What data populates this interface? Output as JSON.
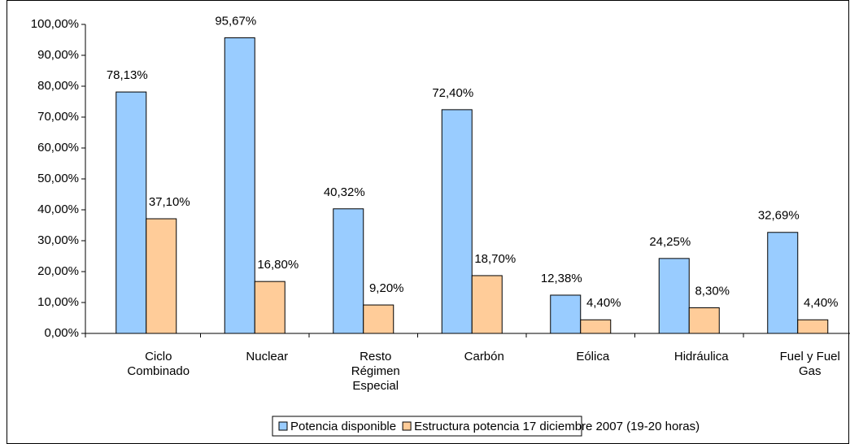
{
  "chart_data": {
    "type": "bar",
    "categories": [
      "Ciclo Combinado",
      "Nuclear",
      "Resto Régimen Especial",
      "Carbón",
      "Eólica",
      "Hidráulica",
      "Fuel y Fuel Gas"
    ],
    "series": [
      {
        "name": "Potencia disponible",
        "color": "#99ccff",
        "values": [
          78.13,
          95.67,
          40.32,
          72.4,
          12.38,
          24.25,
          32.69
        ],
        "value_labels": [
          "78,13%",
          "95,67%",
          "40,32%",
          "72,40%",
          "12,38%",
          "24,25%",
          "32,69%"
        ]
      },
      {
        "name": "Estructura potencia 17 diciembre 2007 (19-20 horas)",
        "color": "#ffcc99",
        "values": [
          37.1,
          16.8,
          9.2,
          18.7,
          4.4,
          8.3,
          4.4
        ],
        "value_labels": [
          "37,10%",
          "16,80%",
          "9,20%",
          "18,70%",
          "4,40%",
          "8,30%",
          "4,40%"
        ]
      }
    ],
    "ylim": [
      0,
      100
    ],
    "yticks": [
      {
        "value": 0,
        "label": "0,00%"
      },
      {
        "value": 10,
        "label": "10,00%"
      },
      {
        "value": 20,
        "label": "20,00%"
      },
      {
        "value": 30,
        "label": "30,00%"
      },
      {
        "value": 40,
        "label": "40,00%"
      },
      {
        "value": 50,
        "label": "50,00%"
      },
      {
        "value": 60,
        "label": "60,00%"
      },
      {
        "value": 70,
        "label": "70,00%"
      },
      {
        "value": 80,
        "label": "80,00%"
      },
      {
        "value": 90,
        "label": "90,00%"
      },
      {
        "value": 100,
        "label": "100,00%"
      }
    ],
    "grid": false,
    "legend": "bottom"
  }
}
